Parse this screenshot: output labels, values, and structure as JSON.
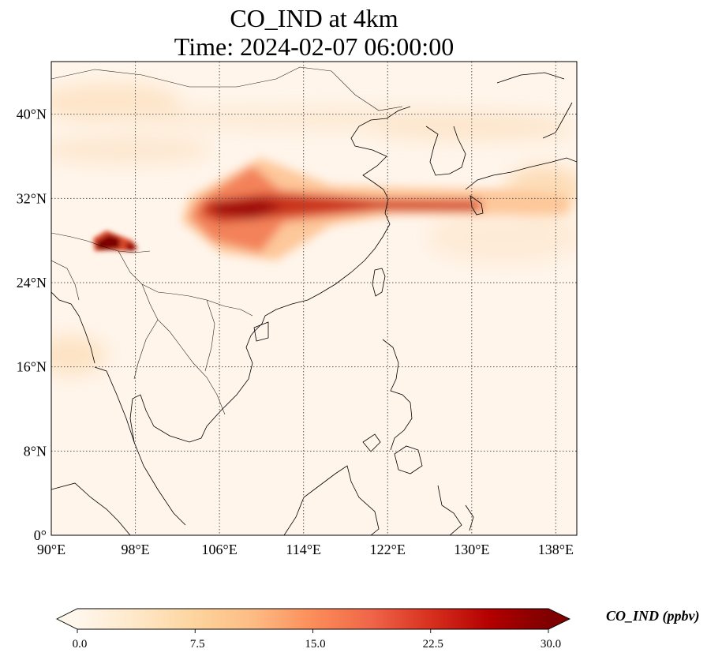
{
  "title": {
    "line1": "CO_IND at 4km",
    "line2": "Time: 2024-02-07 06:00:00"
  },
  "map": {
    "lon_range": [
      90,
      140
    ],
    "lat_range": [
      0,
      45
    ],
    "lat_ticks": [
      {
        "value": 0,
        "label": "0°"
      },
      {
        "value": 8,
        "label": "8°N"
      },
      {
        "value": 16,
        "label": "16°N"
      },
      {
        "value": 24,
        "label": "24°N"
      },
      {
        "value": 32,
        "label": "32°N"
      },
      {
        "value": 40,
        "label": "40°N"
      }
    ],
    "lon_ticks": [
      {
        "value": 90,
        "label": "90°E"
      },
      {
        "value": 98,
        "label": "98°E"
      },
      {
        "value": 106,
        "label": "106°E"
      },
      {
        "value": 114,
        "label": "114°E"
      },
      {
        "value": 122,
        "label": "122°E"
      },
      {
        "value": 130,
        "label": "130°E"
      },
      {
        "value": 138,
        "label": "138°E"
      }
    ],
    "gridlines": true,
    "background_color": "#fff5eb"
  },
  "colorbar": {
    "label": "CO_IND (ppbv)",
    "min": 0.0,
    "max": 30.0,
    "ticks": [
      "0.0",
      "7.5",
      "15.0",
      "22.5",
      "30.0"
    ],
    "extend": "both",
    "colormap": "OrRd",
    "colors": [
      "#fff7ec",
      "#fee8c8",
      "#fdd49e",
      "#fdbb84",
      "#fc8d59",
      "#ef6548",
      "#d7301f",
      "#b30000",
      "#7f0000"
    ]
  }
}
